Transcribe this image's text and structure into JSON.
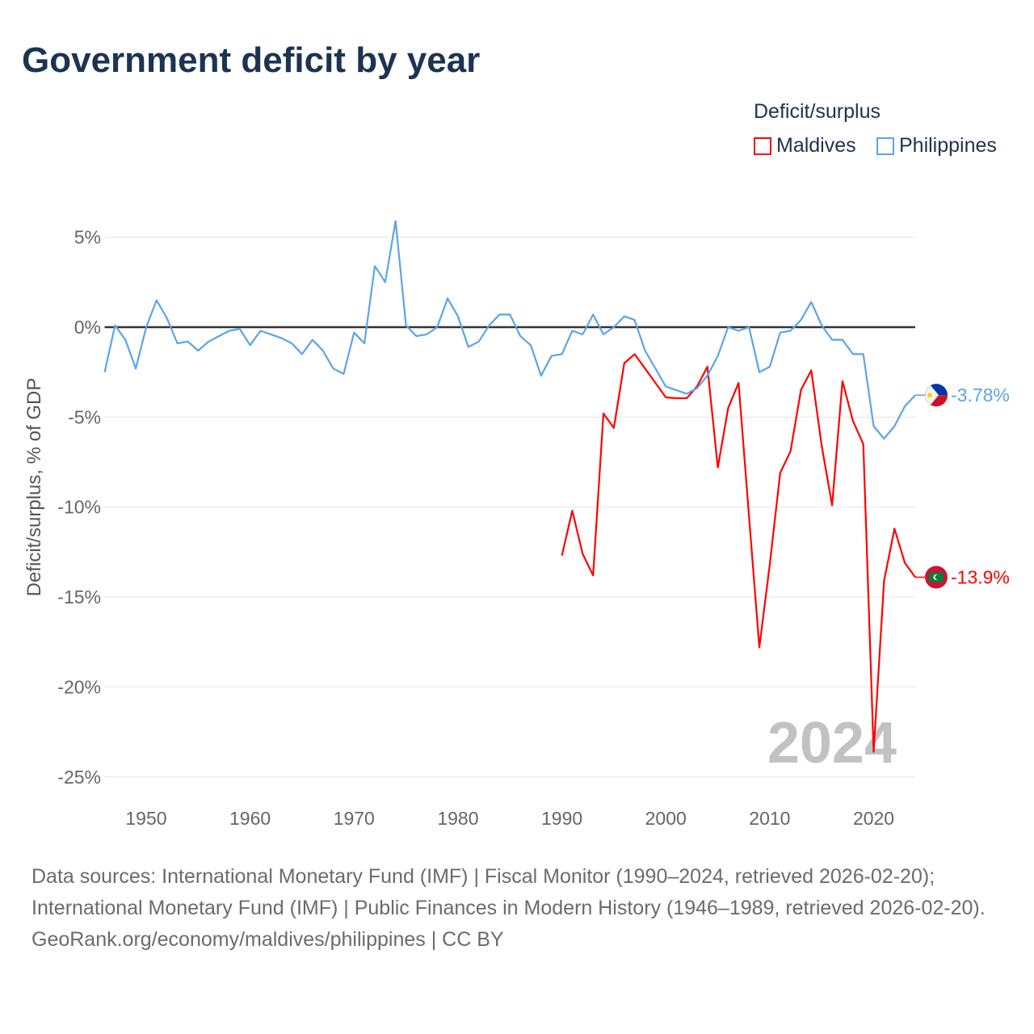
{
  "title": "Government deficit by year",
  "legend": {
    "title": "Deficit/surplus",
    "items": [
      {
        "name": "Maldives",
        "color": "#ff0000"
      },
      {
        "name": "Philippines",
        "color": "#5ca4e8"
      }
    ]
  },
  "chart_data": {
    "type": "line",
    "title": "Government deficit by year",
    "ylabel": "Deficit/surplus, % of GDP",
    "xlabel": "",
    "xlim": [
      1946,
      2024
    ],
    "ylim": [
      -25,
      5
    ],
    "xticks": [
      1950,
      1960,
      1970,
      1980,
      1990,
      2000,
      2010,
      2020
    ],
    "yticks": [
      5,
      0,
      -5,
      -10,
      -15,
      -20,
      -25
    ],
    "ytick_labels": [
      "5%",
      "0%",
      "-5%",
      "-10%",
      "-15%",
      "-20%",
      "-25%"
    ],
    "grid": true,
    "year_watermark": "2024",
    "series": [
      {
        "name": "Philippines",
        "color": "#5ca4e8",
        "start_year": 1946,
        "end_label": "-3.78%",
        "values": [
          -2.5,
          0.1,
          -0.7,
          -2.3,
          0,
          1.5,
          0.5,
          -0.9,
          -0.8,
          -1.3,
          -0.8,
          -0.5,
          -0.2,
          -0.1,
          -1.0,
          -0.2,
          -0.4,
          -0.6,
          -0.9,
          -1.5,
          -0.7,
          -1.3,
          -2.3,
          -2.6,
          -0.3,
          -0.9,
          3.4,
          2.5,
          5.9,
          0.1,
          -0.5,
          -0.4,
          0,
          1.6,
          0.6,
          -1.1,
          -0.8,
          0.1,
          0.7,
          0.7,
          -0.5,
          -1.0,
          -2.7,
          -1.6,
          -1.5,
          -0.2,
          -0.4,
          0.7,
          -0.4,
          0,
          0.6,
          0.4,
          -1.3,
          -2.3,
          -3.3,
          -3.5,
          -3.7,
          -3.4,
          -2.7,
          -1.6,
          0,
          -0.2,
          0,
          -2.5,
          -2.2,
          -0.3,
          -0.2,
          0.4,
          1.4,
          0.1,
          -0.7,
          -0.7,
          -1.5,
          -1.5,
          -5.5,
          -6.2,
          -5.5,
          -4.4,
          -3.78
        ]
      },
      {
        "name": "Maldives",
        "color": "#ff0000",
        "start_year": 1990,
        "end_label": "-13.9%",
        "values": [
          -12.7,
          -10.2,
          -12.6,
          -13.8,
          -4.8,
          -5.6,
          -2.0,
          -1.5,
          -2.3,
          -3.1,
          -3.9,
          -3.95,
          -3.95,
          -3.3,
          -2.2,
          -7.8,
          -4.5,
          -3.1,
          -10.5,
          -17.8,
          -13.2,
          -8.1,
          -6.9,
          -3.5,
          -2.4,
          -6.6,
          -9.9,
          -3.0,
          -5.2,
          -6.5,
          -23.6,
          -14.1,
          -11.2,
          -13.1,
          -13.9
        ]
      }
    ]
  },
  "footer": {
    "sources": "Data sources: International Monetary Fund (IMF) | Fiscal Monitor (1990–2024, retrieved 2026-02-20); International Monetary Fund (IMF) | Public Finances in Modern History (1946–1989, retrieved 2026-02-20).",
    "credit": "GeoRank.org/economy/maldives/philippines | CC BY"
  }
}
